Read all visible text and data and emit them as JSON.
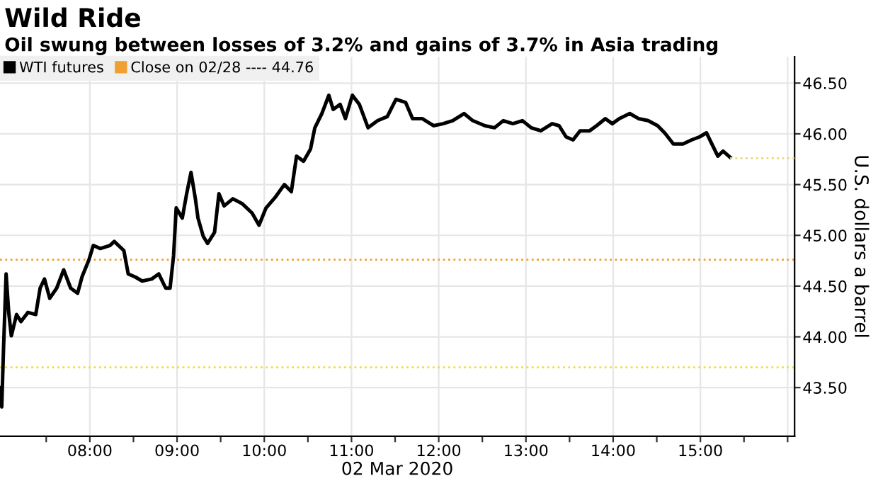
{
  "chart_data": {
    "type": "line",
    "title": "Wild Ride",
    "subtitle": "Oil swung between losses of 3.2% and gains of 3.7% in Asia trading",
    "xlabel": "02 Mar 2020",
    "ylabel": "U.S. dollars a barrel",
    "xlim": [
      6.97,
      16.08
    ],
    "ylim": [
      43.02,
      46.76
    ],
    "xticks": [
      {
        "value": 7.5,
        "label": null
      },
      {
        "value": 8,
        "label": "08:00"
      },
      {
        "value": 8.5,
        "label": null
      },
      {
        "value": 9,
        "label": "09:00"
      },
      {
        "value": 9.5,
        "label": null
      },
      {
        "value": 10,
        "label": "10:00"
      },
      {
        "value": 10.5,
        "label": null
      },
      {
        "value": 11,
        "label": "11:00"
      },
      {
        "value": 11.5,
        "label": null
      },
      {
        "value": 12,
        "label": "12:00"
      },
      {
        "value": 12.5,
        "label": null
      },
      {
        "value": 13,
        "label": "13:00"
      },
      {
        "value": 13.5,
        "label": null
      },
      {
        "value": 14,
        "label": "14:00"
      },
      {
        "value": 14.5,
        "label": null
      },
      {
        "value": 15,
        "label": "15:00"
      },
      {
        "value": 15.5,
        "label": null
      },
      {
        "value": 16,
        "label": null
      }
    ],
    "yticks": [
      {
        "value": 43.5,
        "label": "43.50"
      },
      {
        "value": 44.0,
        "label": "44.00"
      },
      {
        "value": 44.5,
        "label": "44.50"
      },
      {
        "value": 45.0,
        "label": "45.00"
      },
      {
        "value": 45.5,
        "label": "45.50"
      },
      {
        "value": 46.0,
        "label": "46.00"
      },
      {
        "value": 46.5,
        "label": "46.50"
      }
    ],
    "grid": true,
    "legend": "top left",
    "series": [
      {
        "name": "WTI futures",
        "color": "#000000",
        "x": [
          6.97,
          6.99,
          7.01,
          7.04,
          7.07,
          7.1,
          7.16,
          7.21,
          7.29,
          7.38,
          7.43,
          7.48,
          7.54,
          7.62,
          7.7,
          7.78,
          7.86,
          7.91,
          7.99,
          8.04,
          8.12,
          8.23,
          8.28,
          8.39,
          8.44,
          8.52,
          8.6,
          8.71,
          8.79,
          8.87,
          8.92,
          8.96,
          8.99,
          9.06,
          9.11,
          9.16,
          9.21,
          9.24,
          9.3,
          9.35,
          9.43,
          9.48,
          9.54,
          9.64,
          9.75,
          9.86,
          9.94,
          10.02,
          10.13,
          10.23,
          10.31,
          10.37,
          10.45,
          10.53,
          10.58,
          10.66,
          10.74,
          10.79,
          10.87,
          10.93,
          11.01,
          11.09,
          11.19,
          11.3,
          11.41,
          11.51,
          11.62,
          11.7,
          11.81,
          11.94,
          12.05,
          12.16,
          12.29,
          12.39,
          12.53,
          12.64,
          12.74,
          12.85,
          12.96,
          13.06,
          13.17,
          13.3,
          13.38,
          13.46,
          13.54,
          13.62,
          13.73,
          13.81,
          13.91,
          13.99,
          14.07,
          14.19,
          14.29,
          14.4,
          14.51,
          14.59,
          14.69,
          14.8,
          14.9,
          14.99,
          15.07,
          15.12,
          15.2,
          15.26,
          15.34
        ],
        "values": [
          43.5,
          43.31,
          43.87,
          44.62,
          44.24,
          44.01,
          44.22,
          44.15,
          44.24,
          44.22,
          44.48,
          44.57,
          44.38,
          44.48,
          44.66,
          44.48,
          44.43,
          44.59,
          44.76,
          44.9,
          44.87,
          44.9,
          44.94,
          44.85,
          44.62,
          44.59,
          44.55,
          44.57,
          44.62,
          44.48,
          44.48,
          44.8,
          45.27,
          45.17,
          45.41,
          45.62,
          45.36,
          45.17,
          44.99,
          44.92,
          45.03,
          45.41,
          45.29,
          45.36,
          45.31,
          45.22,
          45.1,
          45.27,
          45.38,
          45.5,
          45.43,
          45.78,
          45.73,
          45.85,
          46.06,
          46.2,
          46.38,
          46.24,
          46.29,
          46.15,
          46.38,
          46.29,
          46.06,
          46.13,
          46.17,
          46.34,
          46.31,
          46.15,
          46.15,
          46.08,
          46.1,
          46.13,
          46.2,
          46.13,
          46.08,
          46.06,
          46.13,
          46.1,
          46.13,
          46.06,
          46.03,
          46.1,
          46.08,
          45.97,
          45.94,
          46.03,
          46.03,
          46.08,
          46.15,
          46.1,
          46.15,
          46.2,
          46.15,
          46.13,
          46.08,
          46.01,
          45.9,
          45.9,
          45.94,
          45.97,
          46.01,
          45.92,
          45.78,
          45.83,
          45.77
        ]
      },
      {
        "color": "#e8d870",
        "line_style": "dotted",
        "x": [
          15.34,
          16.08
        ],
        "values": [
          45.76,
          45.76
        ]
      }
    ],
    "ref_lines": [
      {
        "axis": "y",
        "value": 44.76,
        "label": "Close on 02/28 ---- 44.76",
        "color": "#f0a030",
        "line_style": "dotted"
      },
      {
        "axis": "y",
        "value": 43.7,
        "color": "#e8e040",
        "line_style": "dotted"
      }
    ]
  }
}
